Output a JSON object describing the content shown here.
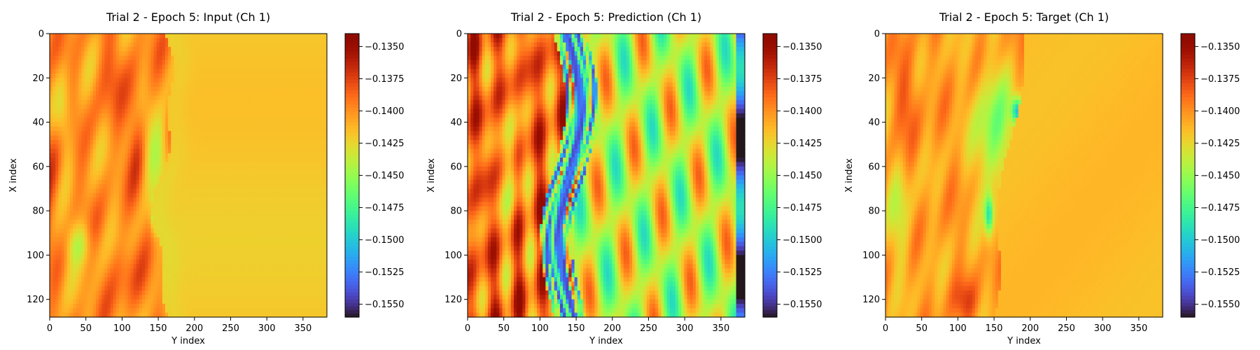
{
  "chart_data": [
    {
      "type": "heatmap",
      "title": "Trial 2 - Epoch 5: Input (Ch 1)",
      "xlabel": "Y index",
      "ylabel": "X index",
      "xlim": [
        0,
        383
      ],
      "ylim": [
        128,
        0
      ],
      "x_ticks": [
        "0",
        "50",
        "100",
        "150",
        "200",
        "250",
        "300",
        "350"
      ],
      "y_ticks": [
        "0",
        "20",
        "40",
        "60",
        "80",
        "100",
        "120"
      ],
      "colorbar": {
        "colormap": "turbo",
        "range": [
          -0.156,
          -0.134
        ],
        "ticks": [
          "−0.1350",
          "−0.1375",
          "−0.1400",
          "−0.1425",
          "−0.1450",
          "−0.1475",
          "−0.1500",
          "−0.1525",
          "−0.1550"
        ]
      },
      "field": "input"
    },
    {
      "type": "heatmap",
      "title": "Trial 2 - Epoch 5: Prediction (Ch 1)",
      "xlabel": "Y index",
      "ylabel": "X index",
      "xlim": [
        0,
        383
      ],
      "ylim": [
        128,
        0
      ],
      "x_ticks": [
        "0",
        "50",
        "100",
        "150",
        "200",
        "250",
        "300",
        "350"
      ],
      "y_ticks": [
        "0",
        "20",
        "40",
        "60",
        "80",
        "100",
        "120"
      ],
      "colorbar": {
        "colormap": "turbo",
        "range": [
          -0.156,
          -0.134
        ],
        "ticks": [
          "−0.1350",
          "−0.1375",
          "−0.1400",
          "−0.1425",
          "−0.1450",
          "−0.1475",
          "−0.1500",
          "−0.1525",
          "−0.1550"
        ]
      },
      "field": "prediction"
    },
    {
      "type": "heatmap",
      "title": "Trial 2 - Epoch 5: Target (Ch 1)",
      "xlabel": "Y index",
      "ylabel": "X index",
      "xlim": [
        0,
        383
      ],
      "ylim": [
        128,
        0
      ],
      "x_ticks": [
        "0",
        "50",
        "100",
        "150",
        "200",
        "250",
        "300",
        "350"
      ],
      "y_ticks": [
        "0",
        "20",
        "40",
        "60",
        "80",
        "100",
        "120"
      ],
      "colorbar": {
        "colormap": "turbo",
        "range": [
          -0.156,
          -0.134
        ],
        "ticks": [
          "−0.1350",
          "−0.1375",
          "−0.1400",
          "−0.1425",
          "−0.1450",
          "−0.1475",
          "−0.1500",
          "−0.1525",
          "−0.1550"
        ]
      },
      "field": "target"
    }
  ]
}
